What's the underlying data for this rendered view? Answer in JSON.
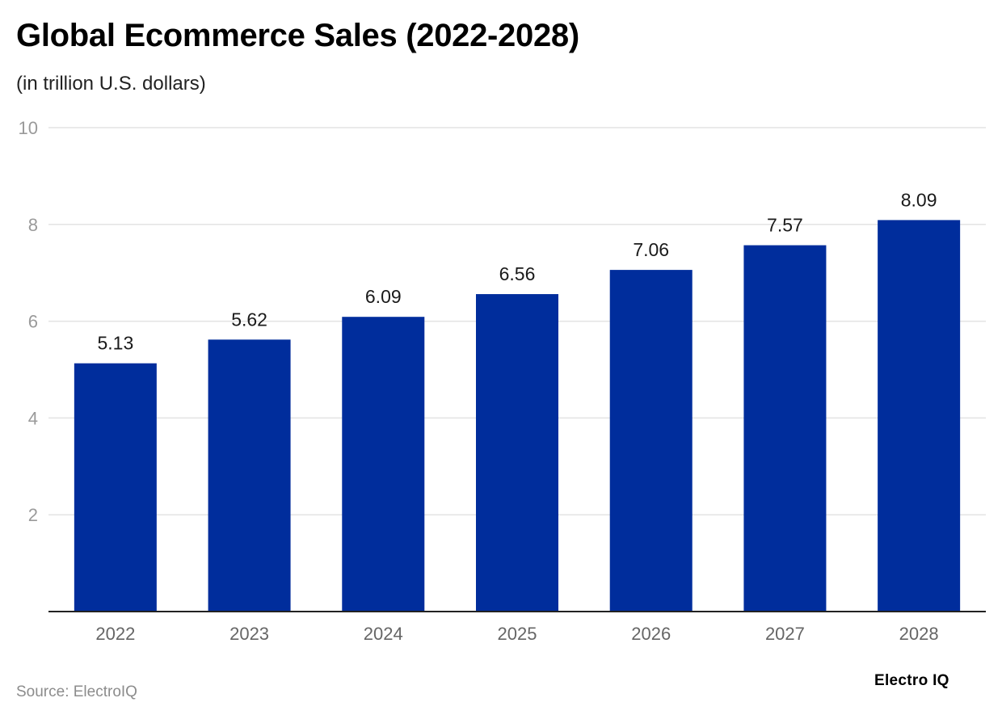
{
  "chart_data": {
    "type": "bar",
    "title": "Global Ecommerce Sales (2022-2028)",
    "subtitle": "(in trillion U.S. dollars)",
    "categories": [
      "2022",
      "2023",
      "2024",
      "2025",
      "2026",
      "2027",
      "2028"
    ],
    "values": [
      5.13,
      5.62,
      6.09,
      6.56,
      7.06,
      7.57,
      8.09
    ],
    "value_labels": [
      "5.13",
      "5.62",
      "6.09",
      "6.56",
      "7.06",
      "7.57",
      "8.09"
    ],
    "xlabel": "",
    "ylabel": "",
    "ylim": [
      0,
      10
    ],
    "yticks": [
      "2",
      "4",
      "6",
      "8",
      "10"
    ],
    "grid": true,
    "legend": "none",
    "bar_color": "#002d9c"
  },
  "footer": {
    "source": "Source: ElectroIQ",
    "brand": "Electro IQ"
  }
}
